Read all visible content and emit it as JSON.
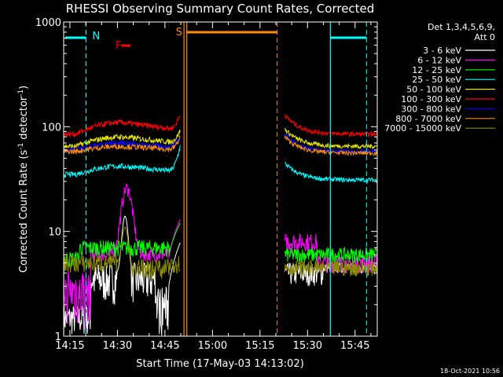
{
  "chart_data": {
    "type": "line",
    "title": "RHESSI Observing Summary Count Rates, Corrected",
    "xlabel": "Start Time (17-May-03 14:13:02)",
    "ylabel_main": "Corrected Count Rate (s",
    "ylabel_exp1": "-1",
    "ylabel_mid": " detector",
    "ylabel_exp2": "-1",
    "ylabel_end": ")",
    "y_scale": "log",
    "ylim": [
      1,
      1000
    ],
    "xlim_minutes": [
      14.217,
      15.867
    ],
    "x_ticks": [
      {
        "label": "14:15",
        "t": 14.25
      },
      {
        "label": "14:30",
        "t": 14.5
      },
      {
        "label": "14:45",
        "t": 14.75
      },
      {
        "label": "15:00",
        "t": 15.0
      },
      {
        "label": "15:15",
        "t": 15.25
      },
      {
        "label": "15:30",
        "t": 15.5
      },
      {
        "label": "15:45",
        "t": 15.75
      }
    ],
    "y_ticks": [
      {
        "label": "1",
        "v": 1
      },
      {
        "label": "10",
        "v": 10
      },
      {
        "label": "100",
        "v": 100
      },
      {
        "label": "1000",
        "v": 1000
      }
    ],
    "legend_header": [
      "Det 1,3,4,5,6,9,",
      "Att 0"
    ],
    "legend_placement": "right",
    "series": [
      {
        "name": "3 - 6 keV",
        "color": "#ffffff"
      },
      {
        "name": "6 - 12 keV",
        "color": "#ff00ff"
      },
      {
        "name": "12 - 25 keV",
        "color": "#00ff00"
      },
      {
        "name": "25 - 50 keV",
        "color": "#00ffff"
      },
      {
        "name": "50 - 100 keV",
        "color": "#e8e800"
      },
      {
        "name": "100 - 300 keV",
        "color": "#ff0000"
      },
      {
        "name": "300 - 800 keV",
        "color": "#0000ff"
      },
      {
        "name": "800 - 7000 keV",
        "color": "#ff8c00"
      },
      {
        "name": "7000 - 15000 keV",
        "color": "#8b8b00"
      }
    ],
    "annotations": {
      "night_label": "N",
      "flare_label": "F",
      "saa_label": "S"
    },
    "timestamp": "18-Oct-2021 10:56"
  }
}
